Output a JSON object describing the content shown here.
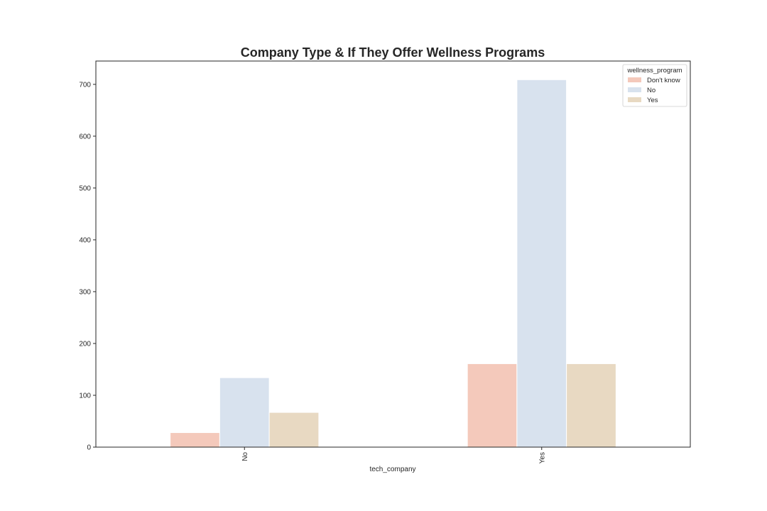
{
  "chart_data": {
    "type": "bar",
    "title": "Company Type & If They Offer Wellness Programs",
    "xlabel": "tech_company",
    "ylabel": "",
    "categories": [
      "No",
      "Yes"
    ],
    "ylim": [
      0,
      745
    ],
    "yticks": [
      0,
      100,
      200,
      300,
      400,
      500,
      600,
      700
    ],
    "legend_title": "wellness_program",
    "legend_position": "top-right",
    "grid": false,
    "series": [
      {
        "name": "Don't know",
        "color": "#f4c9bb",
        "values": [
          28,
          161
        ]
      },
      {
        "name": "No",
        "color": "#d8e2ee",
        "values": [
          134,
          709
        ]
      },
      {
        "name": "Yes",
        "color": "#e8d9c2",
        "values": [
          67,
          161
        ]
      }
    ]
  }
}
